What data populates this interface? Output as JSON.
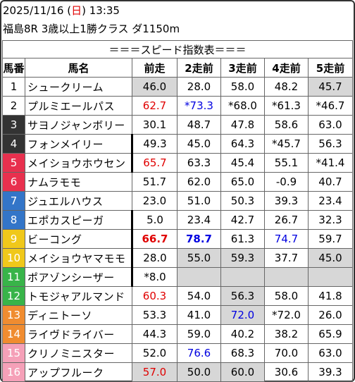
{
  "header": {
    "date": "2025/11/16",
    "day_open": " (",
    "weekday": "日",
    "day_close": ")",
    "time": "13:35",
    "race": "福島8R 3歳以上1勝クラス ダ1150m"
  },
  "table": {
    "title": "＝＝＝スピード指数表＝＝＝",
    "columns": [
      "馬番",
      "馬名",
      "前走",
      "2走前",
      "3走前",
      "4走前",
      "5走前"
    ],
    "rows": [
      {
        "no": "1",
        "name": "シュークリーム",
        "v": [
          "46.0",
          "28.0",
          "58.0",
          "48.2",
          "45.7"
        ]
      },
      {
        "no": "2",
        "name": "プルミエールパス",
        "v": [
          "62.7",
          "*73.3",
          "*68.0",
          "*61.3",
          "*46.7"
        ]
      },
      {
        "no": "3",
        "name": "サヨノジャンボリー",
        "v": [
          "30.1",
          "48.7",
          "47.8",
          "58.6",
          "63.0"
        ]
      },
      {
        "no": "4",
        "name": "フォンメイリー",
        "v": [
          "49.3",
          "45.0",
          "64.3",
          "*45.7",
          "56.3"
        ]
      },
      {
        "no": "5",
        "name": "メイショウホウセン",
        "v": [
          "65.7",
          "63.3",
          "45.4",
          "55.1",
          "*41.4"
        ]
      },
      {
        "no": "6",
        "name": "ナムラモモ",
        "v": [
          "51.7",
          "62.0",
          "65.0",
          "-0.9",
          "40.7"
        ]
      },
      {
        "no": "7",
        "name": "ジュエルハウス",
        "v": [
          "23.0",
          "51.0",
          "50.3",
          "39.3",
          "23.4"
        ]
      },
      {
        "no": "8",
        "name": "エポカスピーガ",
        "v": [
          "5.0",
          "23.4",
          "42.7",
          "26.7",
          "32.3"
        ]
      },
      {
        "no": "9",
        "name": "ビーコング",
        "v": [
          "66.7",
          "78.7",
          "61.3",
          "74.7",
          "59.7"
        ]
      },
      {
        "no": "10",
        "name": "メイショウヤマモモ",
        "v": [
          "28.0",
          "55.0",
          "59.3",
          "37.7",
          "45.0"
        ]
      },
      {
        "no": "11",
        "name": "ポアゾンシーザー",
        "v": [
          "*8.0",
          "",
          "",
          "",
          ""
        ]
      },
      {
        "no": "12",
        "name": "トモジャアルマンド",
        "v": [
          "60.3",
          "54.0",
          "56.3",
          "58.0",
          "41.8"
        ]
      },
      {
        "no": "13",
        "name": "ディニトーソ",
        "v": [
          "53.3",
          "41.0",
          "72.0",
          "*72.0",
          "26.0"
        ]
      },
      {
        "no": "14",
        "name": "ライヴドライバー",
        "v": [
          "44.3",
          "59.0",
          "40.2",
          "38.2",
          "65.9"
        ]
      },
      {
        "no": "15",
        "name": "クリノミニスター",
        "v": [
          "52.0",
          "76.6",
          "68.3",
          "70.0",
          "63.0"
        ]
      },
      {
        "no": "16",
        "name": "アップフルーク",
        "v": [
          "57.0",
          "50.0",
          "60.0",
          "30.6",
          "39.3"
        ]
      }
    ]
  },
  "colors": {
    "gate": [
      "#ffffff",
      "#ffffff",
      "#333333",
      "#333333",
      "#e8304e",
      "#e8304e",
      "#3375c8",
      "#3375c8",
      "#f0c81a",
      "#f0c81a",
      "#38b449",
      "#38b449",
      "#f08c30",
      "#f08c30",
      "#f5a0b8",
      "#f5a0b8"
    ],
    "gate_text": [
      "#000000",
      "#000000",
      "#ffffff",
      "#ffffff",
      "#ffffff",
      "#ffffff",
      "#ffffff",
      "#ffffff",
      "#ffffff",
      "#ffffff",
      "#ffffff",
      "#ffffff",
      "#ffffff",
      "#ffffff",
      "#ffffff",
      "#ffffff"
    ],
    "highlight_red": "#e00000",
    "highlight_blue": "#0000e0",
    "shade": "#d7d7d7"
  }
}
